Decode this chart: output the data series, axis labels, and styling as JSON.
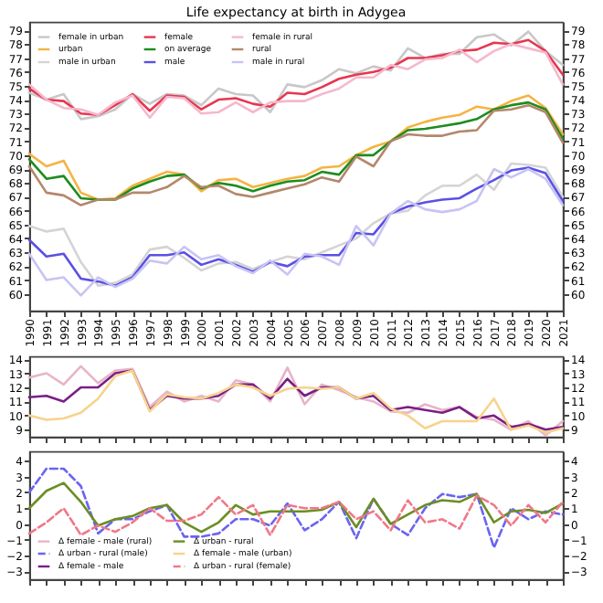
{
  "chart_data": [
    {
      "type": "line",
      "title": "Life expectancy at birth in Adygea",
      "x": [
        1990,
        1991,
        1992,
        1993,
        1994,
        1995,
        1996,
        1997,
        1998,
        1999,
        2000,
        2001,
        2002,
        2003,
        2004,
        2005,
        2006,
        2007,
        2008,
        2009,
        2010,
        2011,
        2012,
        2013,
        2014,
        2015,
        2016,
        2017,
        2018,
        2019,
        2020,
        2021
      ],
      "xlim": [
        1990,
        2021
      ],
      "xticks": [
        1990,
        1991,
        1992,
        1993,
        1994,
        1995,
        1996,
        1997,
        1998,
        1999,
        2000,
        2001,
        2002,
        2003,
        2004,
        2005,
        2006,
        2007,
        2008,
        2009,
        2010,
        2011,
        2012,
        2013,
        2014,
        2015,
        2016,
        2017,
        2018,
        2019,
        2020,
        2021
      ],
      "ylim": [
        58.8,
        79.6
      ],
      "yticks": [
        60,
        61,
        62,
        63,
        64,
        65,
        66,
        67,
        68,
        69,
        70,
        71,
        72,
        73,
        74,
        75,
        76,
        77,
        78,
        79
      ],
      "y2lim": [
        58.8,
        79.6
      ],
      "y2ticks": [
        60,
        61,
        62,
        63,
        64,
        65,
        66,
        67,
        68,
        69,
        70,
        71,
        72,
        73,
        74,
        75,
        76,
        77,
        78,
        79
      ],
      "legend": "top left",
      "grid": false,
      "line_style": "solid",
      "series": [
        {
          "name": "female in urban",
          "color": "#c8c8c8",
          "values": [
            74.5,
            74.0,
            74.4,
            72.6,
            72.8,
            73.3,
            74.4,
            73.7,
            74.4,
            74.3,
            73.6,
            74.8,
            74.4,
            74.3,
            73.1,
            75.1,
            74.9,
            75.4,
            76.2,
            75.9,
            76.4,
            76.1,
            77.7,
            77.0,
            77.3,
            77.3,
            78.5,
            78.7,
            77.9,
            78.9,
            77.5,
            76.5
          ]
        },
        {
          "name": "urban",
          "color": "#f5b342",
          "values": [
            70.1,
            69.2,
            69.6,
            67.3,
            66.8,
            66.9,
            67.8,
            68.3,
            68.8,
            68.6,
            67.4,
            68.2,
            68.3,
            67.7,
            68.0,
            68.3,
            68.5,
            69.1,
            69.2,
            70.0,
            70.6,
            71.0,
            72.0,
            72.4,
            72.7,
            72.9,
            73.5,
            73.3,
            73.9,
            74.3,
            73.4,
            71.5
          ]
        },
        {
          "name": "male in urban",
          "color": "#d4d4d4",
          "values": [
            64.9,
            64.5,
            64.7,
            62.3,
            60.6,
            60.8,
            61.4,
            63.2,
            63.4,
            62.6,
            61.7,
            62.2,
            62.3,
            61.8,
            62.3,
            62.7,
            62.5,
            63.0,
            63.5,
            64.0,
            65.1,
            65.8,
            66.0,
            67.1,
            67.8,
            67.8,
            68.6,
            67.5,
            69.4,
            69.3,
            69.1,
            67.0
          ]
        },
        {
          "name": "female",
          "color": "#e8364f",
          "values": [
            74.8,
            74.0,
            73.9,
            73.0,
            72.9,
            73.6,
            74.4,
            73.2,
            74.3,
            74.2,
            73.3,
            74.0,
            74.1,
            73.7,
            73.5,
            74.5,
            74.4,
            74.9,
            75.5,
            75.8,
            76.0,
            76.3,
            77.0,
            77.0,
            77.2,
            77.5,
            77.6,
            78.1,
            78.0,
            78.3,
            77.5,
            75.8
          ]
        },
        {
          "name": "on average",
          "color": "#1e8c1e",
          "values": [
            69.7,
            68.3,
            68.5,
            66.9,
            66.8,
            66.8,
            67.6,
            68.1,
            68.5,
            68.6,
            67.6,
            68.0,
            67.8,
            67.4,
            67.8,
            68.1,
            68.2,
            68.8,
            68.6,
            70.0,
            70.0,
            71.0,
            71.8,
            71.9,
            72.1,
            72.3,
            72.6,
            73.3,
            73.6,
            73.8,
            73.3,
            71.2
          ]
        },
        {
          "name": "male",
          "color": "#5a50e6",
          "values": [
            63.9,
            62.7,
            62.9,
            61.1,
            60.9,
            60.6,
            61.2,
            62.8,
            62.8,
            63.0,
            62.1,
            62.5,
            62.1,
            61.6,
            62.3,
            62.0,
            62.7,
            62.8,
            62.8,
            64.4,
            64.3,
            65.8,
            66.3,
            66.6,
            66.8,
            66.9,
            67.6,
            68.2,
            68.9,
            69.1,
            68.7,
            66.7
          ]
        },
        {
          "name": "female in rural",
          "color": "#f5b8cc",
          "values": [
            75.1,
            74.0,
            73.4,
            73.3,
            72.9,
            73.8,
            74.3,
            72.7,
            74.2,
            74.1,
            73.0,
            73.1,
            73.8,
            73.1,
            73.8,
            73.9,
            73.9,
            74.4,
            74.8,
            75.6,
            75.6,
            76.5,
            76.2,
            76.9,
            77.0,
            77.6,
            76.7,
            77.5,
            78.0,
            77.7,
            77.4,
            75.1
          ]
        },
        {
          "name": "rural",
          "color": "#b4876a",
          "values": [
            69.2,
            67.3,
            67.1,
            66.4,
            66.8,
            66.8,
            67.3,
            67.3,
            67.7,
            68.5,
            67.7,
            67.8,
            67.2,
            67.0,
            67.3,
            67.6,
            67.9,
            68.4,
            68.1,
            69.9,
            69.2,
            71.0,
            71.5,
            71.4,
            71.4,
            71.7,
            71.8,
            73.2,
            73.3,
            73.6,
            73.1,
            70.9
          ]
        },
        {
          "name": "male in rural",
          "color": "#c8c4f2",
          "values": [
            62.9,
            61.0,
            61.2,
            59.9,
            61.2,
            60.5,
            61.1,
            62.4,
            62.2,
            63.4,
            62.5,
            62.8,
            62.0,
            61.5,
            62.4,
            61.4,
            62.9,
            62.7,
            62.1,
            64.9,
            63.5,
            65.8,
            66.7,
            66.1,
            65.9,
            66.1,
            66.7,
            69.0,
            68.4,
            69.0,
            68.3,
            66.4
          ]
        }
      ]
    },
    {
      "type": "line",
      "x": [
        1990,
        1991,
        1992,
        1993,
        1994,
        1995,
        1996,
        1997,
        1998,
        1999,
        2000,
        2001,
        2002,
        2003,
        2004,
        2005,
        2006,
        2007,
        2008,
        2009,
        2010,
        2011,
        2012,
        2013,
        2014,
        2015,
        2016,
        2017,
        2018,
        2019,
        2020,
        2021
      ],
      "xlim": [
        1990,
        2021
      ],
      "ylim": [
        8.5,
        14.2
      ],
      "yticks": [
        9,
        10,
        11,
        12,
        13,
        14
      ],
      "y2lim": [
        8.5,
        14.2
      ],
      "y2ticks": [
        9,
        10,
        11,
        12,
        13,
        14
      ],
      "tick_labels": "y",
      "legend": "bottom left",
      "grid": false,
      "line_style": "solid",
      "series": [
        {
          "name": "Δ female - male (rural)",
          "color": "#e8b4c8",
          "values": [
            12.7,
            13.0,
            12.2,
            13.5,
            12.3,
            13.2,
            13.3,
            10.6,
            11.7,
            11.0,
            11.4,
            11.0,
            12.5,
            12.2,
            11.0,
            13.4,
            10.8,
            12.2,
            11.8,
            11.3,
            11.0,
            10.3,
            10.2,
            10.8,
            10.4,
            10.6,
            9.9,
            9.7,
            9.0,
            9.6,
            8.6,
            9.6
          ]
        },
        {
          "name": "Δ female - male",
          "color": "#7a1f86",
          "values": [
            11.3,
            11.4,
            11.0,
            12.0,
            12.0,
            13.0,
            13.2,
            10.4,
            11.4,
            11.2,
            11.2,
            11.4,
            12.2,
            12.2,
            11.2,
            12.6,
            11.4,
            12.0,
            12.0,
            11.2,
            11.4,
            10.4,
            10.6,
            10.4,
            10.2,
            10.6,
            9.8,
            10.0,
            9.2,
            9.4,
            9.0,
            9.2
          ]
        },
        {
          "name": "Δ female - male (urban)",
          "color": "#f7d38c",
          "values": [
            10.0,
            9.7,
            9.8,
            10.2,
            11.2,
            12.8,
            13.2,
            10.3,
            11.5,
            11.3,
            11.2,
            11.6,
            12.2,
            12.0,
            11.4,
            11.9,
            12.0,
            11.9,
            12.0,
            11.2,
            11.6,
            10.5,
            10.0,
            9.1,
            9.6,
            9.6,
            9.6,
            11.2,
            9.0,
            9.3,
            8.8,
            9.1
          ]
        }
      ]
    },
    {
      "type": "line",
      "x": [
        1990,
        1991,
        1992,
        1993,
        1994,
        1995,
        1996,
        1997,
        1998,
        1999,
        2000,
        2001,
        2002,
        2003,
        2004,
        2005,
        2006,
        2007,
        2008,
        2009,
        2010,
        2011,
        2012,
        2013,
        2014,
        2015,
        2016,
        2017,
        2018,
        2019,
        2020,
        2021
      ],
      "xlim": [
        1990,
        2021
      ],
      "ylim": [
        -3.5,
        4.6
      ],
      "yticks": [
        -3,
        -2,
        -1,
        0,
        1,
        2,
        3,
        4
      ],
      "y2lim": [
        -3.5,
        4.6
      ],
      "y2ticks": [
        -3,
        -2,
        -1,
        0,
        1,
        2,
        3,
        4
      ],
      "tick_labels": "y",
      "legend": "bottom left",
      "grid": false,
      "series": [
        {
          "name": "Δ urban - rural (male)",
          "color": "#6a64f0",
          "line_style": "dashed",
          "values": [
            2.0,
            3.5,
            3.5,
            2.4,
            -0.6,
            0.3,
            0.3,
            0.8,
            1.2,
            -0.8,
            -0.8,
            -0.6,
            0.3,
            0.3,
            -0.1,
            1.3,
            -0.4,
            0.3,
            1.4,
            -0.9,
            1.6,
            0.0,
            -0.7,
            1.0,
            1.9,
            1.7,
            1.9,
            -1.5,
            1.0,
            0.3,
            0.8,
            0.6
          ]
        },
        {
          "name": "Δ urban - rural",
          "color": "#6b8e23",
          "line_style": "solid",
          "values": [
            1.0,
            2.1,
            2.6,
            1.4,
            -0.1,
            0.3,
            0.5,
            1.0,
            1.2,
            0.1,
            -0.5,
            0.1,
            1.2,
            0.6,
            0.8,
            0.8,
            0.8,
            0.9,
            1.4,
            -0.2,
            1.6,
            0.0,
            0.6,
            1.2,
            1.5,
            1.4,
            1.9,
            0.1,
            0.8,
            0.9,
            0.7,
            1.3
          ]
        },
        {
          "name": "Δ urban - rural (female)",
          "color": "#f07888",
          "line_style": "dashed",
          "values": [
            -0.6,
            0.1,
            1.0,
            -0.7,
            -0.1,
            -0.5,
            0.1,
            1.0,
            0.2,
            0.2,
            0.6,
            1.7,
            0.6,
            1.2,
            -0.7,
            1.2,
            1.0,
            1.0,
            1.4,
            0.3,
            0.8,
            -0.4,
            1.5,
            0.1,
            0.3,
            -0.3,
            1.8,
            1.2,
            -0.1,
            1.2,
            0.1,
            1.4
          ]
        }
      ]
    }
  ]
}
